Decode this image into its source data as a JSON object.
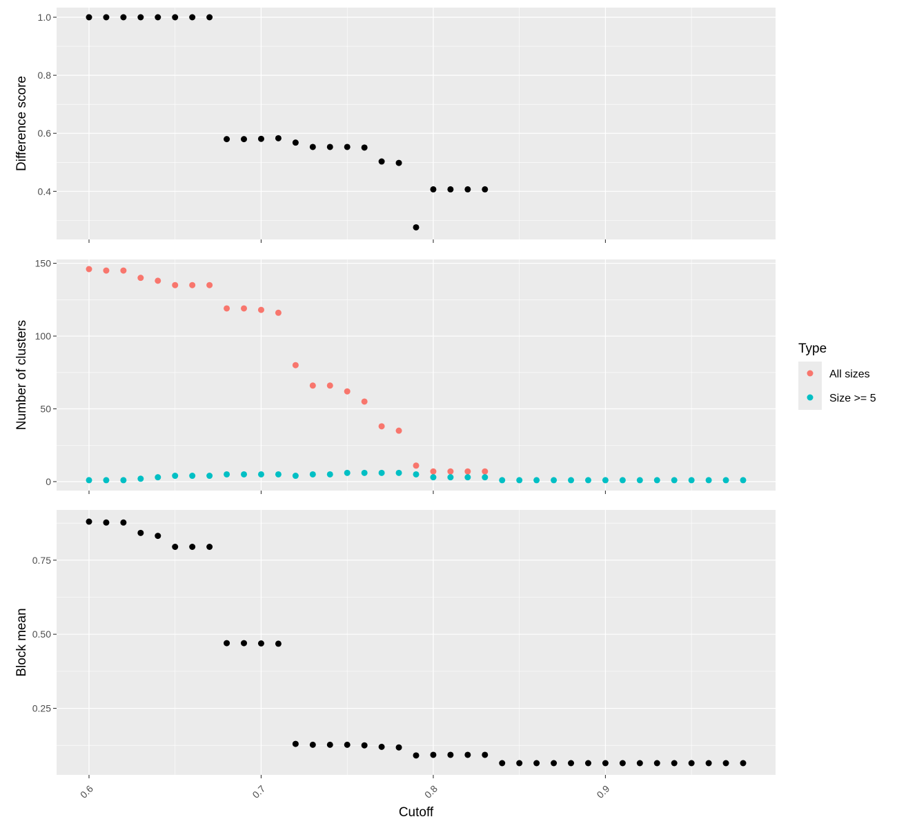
{
  "figure": {
    "xlabel": "Cutoff",
    "x_ticks": [
      0.6,
      0.7,
      0.8,
      0.9
    ],
    "x_tick_labels": [
      "0.6",
      "0.7",
      "0.8",
      "0.9"
    ],
    "xlim": [
      0.6,
      0.98
    ],
    "background_colors": {
      "panel": "#ebebeb",
      "grid": "#ffffff",
      "point_default": "#000000"
    }
  },
  "legend": {
    "title": "Type",
    "items": [
      {
        "label": "All sizes",
        "color": "#f8766d"
      },
      {
        "label": "Size >= 5",
        "color": "#00bfc4"
      }
    ]
  },
  "chart_data": [
    {
      "type": "scatter",
      "ylabel": "Difference score",
      "ylim": [
        0.27,
        1.0
      ],
      "y_ticks": [
        0.4,
        0.6,
        0.8,
        1.0
      ],
      "y_tick_labels": [
        "0.4",
        "0.6",
        "0.8",
        "1.0"
      ],
      "grid": true,
      "series": [
        {
          "color": "#000000",
          "x": [
            0.6,
            0.61,
            0.62,
            0.63,
            0.64,
            0.65,
            0.66,
            0.67,
            0.68,
            0.69,
            0.7,
            0.71,
            0.72,
            0.73,
            0.74,
            0.75,
            0.76,
            0.77,
            0.78,
            0.79,
            0.8,
            0.81,
            0.82,
            0.83
          ],
          "y": [
            1.0,
            1.0,
            1.0,
            1.0,
            1.0,
            1.0,
            1.0,
            1.0,
            0.58,
            0.58,
            0.581,
            0.583,
            0.568,
            0.553,
            0.553,
            0.553,
            0.551,
            0.503,
            0.498,
            0.276,
            0.407,
            0.407,
            0.407,
            0.407
          ]
        }
      ]
    },
    {
      "type": "scatter",
      "ylabel": "Number of clusters",
      "ylim": [
        0,
        146
      ],
      "y_ticks": [
        0,
        50,
        100,
        150
      ],
      "y_tick_labels": [
        "0",
        "50",
        "100",
        "150"
      ],
      "grid": true,
      "series": [
        {
          "name": "All sizes",
          "color": "#f8766d",
          "x": [
            0.6,
            0.61,
            0.62,
            0.63,
            0.64,
            0.65,
            0.66,
            0.67,
            0.68,
            0.69,
            0.7,
            0.71,
            0.72,
            0.73,
            0.74,
            0.75,
            0.76,
            0.77,
            0.78,
            0.79,
            0.8,
            0.81,
            0.82,
            0.83
          ],
          "y": [
            146,
            145,
            145,
            140,
            138,
            135,
            135,
            135,
            119,
            119,
            118,
            116,
            80,
            66,
            66,
            62,
            55,
            38,
            35,
            11,
            7,
            7,
            7,
            7
          ]
        },
        {
          "name": "Size >= 5",
          "color": "#00bfc4",
          "x": [
            0.6,
            0.61,
            0.62,
            0.63,
            0.64,
            0.65,
            0.66,
            0.67,
            0.68,
            0.69,
            0.7,
            0.71,
            0.72,
            0.73,
            0.74,
            0.75,
            0.76,
            0.77,
            0.78,
            0.79,
            0.8,
            0.81,
            0.82,
            0.83,
            0.84,
            0.85,
            0.86,
            0.87,
            0.88,
            0.89,
            0.9,
            0.91,
            0.92,
            0.93,
            0.94,
            0.95,
            0.96,
            0.97,
            0.98
          ],
          "y": [
            1,
            1,
            1,
            2,
            3,
            4,
            4,
            4,
            5,
            5,
            5,
            5,
            4,
            5,
            5,
            6,
            6,
            6,
            6,
            5,
            3,
            3,
            3,
            3,
            1,
            1,
            1,
            1,
            1,
            1,
            1,
            1,
            1,
            1,
            1,
            1,
            1,
            1,
            1
          ]
        }
      ]
    },
    {
      "type": "scatter",
      "ylabel": "Block mean",
      "ylim": [
        0.065,
        0.88
      ],
      "y_ticks": [
        0.25,
        0.5,
        0.75
      ],
      "y_tick_labels": [
        "0.25",
        "0.50",
        "0.75"
      ],
      "grid": true,
      "series": [
        {
          "color": "#000000",
          "x": [
            0.6,
            0.61,
            0.62,
            0.63,
            0.64,
            0.65,
            0.66,
            0.67,
            0.68,
            0.69,
            0.7,
            0.71,
            0.72,
            0.73,
            0.74,
            0.75,
            0.76,
            0.77,
            0.78,
            0.79,
            0.8,
            0.81,
            0.82,
            0.83,
            0.84,
            0.85,
            0.86,
            0.87,
            0.88,
            0.89,
            0.9,
            0.91,
            0.92,
            0.93,
            0.94,
            0.95,
            0.96,
            0.97,
            0.98
          ],
          "y": [
            0.88,
            0.877,
            0.877,
            0.842,
            0.832,
            0.795,
            0.795,
            0.795,
            0.47,
            0.47,
            0.469,
            0.468,
            0.13,
            0.127,
            0.127,
            0.127,
            0.125,
            0.12,
            0.118,
            0.091,
            0.093,
            0.093,
            0.093,
            0.093,
            0.065,
            0.065,
            0.065,
            0.065,
            0.065,
            0.065,
            0.065,
            0.065,
            0.065,
            0.065,
            0.065,
            0.065,
            0.065,
            0.065,
            0.065
          ]
        }
      ]
    }
  ]
}
